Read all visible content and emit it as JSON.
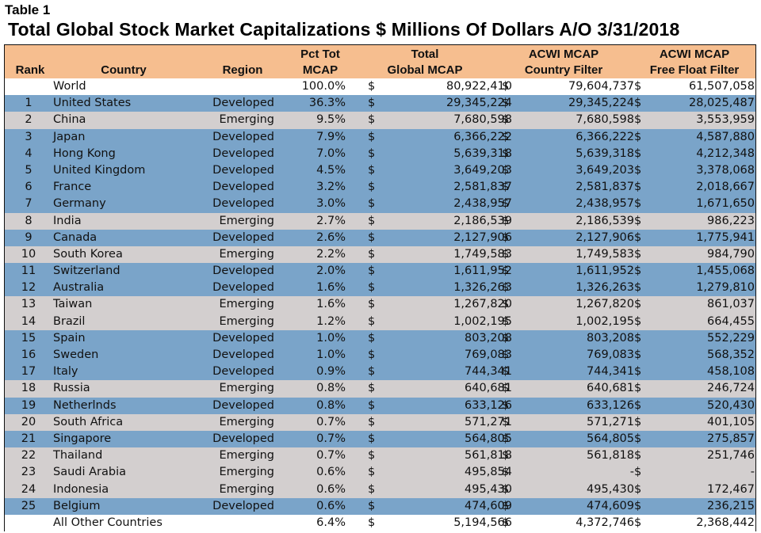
{
  "table_label": "Table 1",
  "title": "Total Global Stock Market Capitalizations $ Millions Of Dollars A/O 3/31/2018",
  "currency_symbol": "$",
  "header": {
    "rank": "Rank",
    "country": "Country",
    "region": "Region",
    "pct_line1": "Pct Tot",
    "pct_line2": "MCAP",
    "total_line1": "Total",
    "total_line2": "Global MCAP",
    "acwi_line1": "ACWI MCAP",
    "acwi_line2": "Country Filter",
    "ff_line1": "ACWI MCAP",
    "ff_line2": "Free Float Filter"
  },
  "colors": {
    "header": "#f6be8f",
    "developed_row": "#7aa4c9",
    "emerging_row": "#d3cfcf",
    "plain_row": "#ffffff"
  },
  "chart_data": {
    "type": "table",
    "title": "Total Global Stock Market Capitalizations $ Millions Of Dollars A/O 3/31/2018",
    "columns": [
      "Rank",
      "Country",
      "Region",
      "Pct Tot MCAP",
      "Total Global MCAP",
      "ACWI MCAP Country Filter",
      "ACWI MCAP Free Float Filter"
    ],
    "rows": [
      {
        "rank": "",
        "country": "World",
        "region": "",
        "pct": "100.0%",
        "total": "80,922,410",
        "acwi": "79,604,737",
        "ff": "61,507,058"
      },
      {
        "rank": "1",
        "country": "United States",
        "region": "Developed",
        "pct": "36.3%",
        "total": "29,345,224",
        "acwi": "29,345,224",
        "ff": "28,025,487"
      },
      {
        "rank": "2",
        "country": "China",
        "region": "Emerging",
        "pct": "9.5%",
        "total": "7,680,598",
        "acwi": "7,680,598",
        "ff": "3,553,959"
      },
      {
        "rank": "3",
        "country": "Japan",
        "region": "Developed",
        "pct": "7.9%",
        "total": "6,366,222",
        "acwi": "6,366,222",
        "ff": "4,587,880"
      },
      {
        "rank": "4",
        "country": "Hong Kong",
        "region": "Developed",
        "pct": "7.0%",
        "total": "5,639,318",
        "acwi": "5,639,318",
        "ff": "4,212,348"
      },
      {
        "rank": "5",
        "country": "United Kingdom",
        "region": "Developed",
        "pct": "4.5%",
        "total": "3,649,203",
        "acwi": "3,649,203",
        "ff": "3,378,068"
      },
      {
        "rank": "6",
        "country": "France",
        "region": "Developed",
        "pct": "3.2%",
        "total": "2,581,837",
        "acwi": "2,581,837",
        "ff": "2,018,667"
      },
      {
        "rank": "7",
        "country": "Germany",
        "region": "Developed",
        "pct": "3.0%",
        "total": "2,438,957",
        "acwi": "2,438,957",
        "ff": "1,671,650"
      },
      {
        "rank": "8",
        "country": "India",
        "region": "Emerging",
        "pct": "2.7%",
        "total": "2,186,539",
        "acwi": "2,186,539",
        "ff": "986,223"
      },
      {
        "rank": "9",
        "country": "Canada",
        "region": "Developed",
        "pct": "2.6%",
        "total": "2,127,906",
        "acwi": "2,127,906",
        "ff": "1,775,941"
      },
      {
        "rank": "10",
        "country": "South Korea",
        "region": "Emerging",
        "pct": "2.2%",
        "total": "1,749,583",
        "acwi": "1,749,583",
        "ff": "984,790"
      },
      {
        "rank": "11",
        "country": "Switzerland",
        "region": "Developed",
        "pct": "2.0%",
        "total": "1,611,952",
        "acwi": "1,611,952",
        "ff": "1,455,068"
      },
      {
        "rank": "12",
        "country": "Australia",
        "region": "Developed",
        "pct": "1.6%",
        "total": "1,326,263",
        "acwi": "1,326,263",
        "ff": "1,279,810"
      },
      {
        "rank": "13",
        "country": "Taiwan",
        "region": "Emerging",
        "pct": "1.6%",
        "total": "1,267,820",
        "acwi": "1,267,820",
        "ff": "861,037"
      },
      {
        "rank": "14",
        "country": "Brazil",
        "region": "Emerging",
        "pct": "1.2%",
        "total": "1,002,195",
        "acwi": "1,002,195",
        "ff": "664,455"
      },
      {
        "rank": "15",
        "country": "Spain",
        "region": "Developed",
        "pct": "1.0%",
        "total": "803,208",
        "acwi": "803,208",
        "ff": "552,229"
      },
      {
        "rank": "16",
        "country": "Sweden",
        "region": "Developed",
        "pct": "1.0%",
        "total": "769,083",
        "acwi": "769,083",
        "ff": "568,352"
      },
      {
        "rank": "17",
        "country": "Italy",
        "region": "Developed",
        "pct": "0.9%",
        "total": "744,341",
        "acwi": "744,341",
        "ff": "458,108"
      },
      {
        "rank": "18",
        "country": "Russia",
        "region": "Emerging",
        "pct": "0.8%",
        "total": "640,681",
        "acwi": "640,681",
        "ff": "246,724"
      },
      {
        "rank": "19",
        "country": "Netherlnds",
        "region": "Developed",
        "pct": "0.8%",
        "total": "633,126",
        "acwi": "633,126",
        "ff": "520,430"
      },
      {
        "rank": "20",
        "country": "South Africa",
        "region": "Emerging",
        "pct": "0.7%",
        "total": "571,271",
        "acwi": "571,271",
        "ff": "401,105"
      },
      {
        "rank": "21",
        "country": "Singapore",
        "region": "Developed",
        "pct": "0.7%",
        "total": "564,805",
        "acwi": "564,805",
        "ff": "275,857"
      },
      {
        "rank": "22",
        "country": "Thailand",
        "region": "Emerging",
        "pct": "0.7%",
        "total": "561,818",
        "acwi": "561,818",
        "ff": "251,746"
      },
      {
        "rank": "23",
        "country": "Saudi Arabia",
        "region": "Emerging",
        "pct": "0.6%",
        "total": "495,854",
        "acwi": "-",
        "ff": "-"
      },
      {
        "rank": "24",
        "country": "Indonesia",
        "region": "Emerging",
        "pct": "0.6%",
        "total": "495,430",
        "acwi": "495,430",
        "ff": "172,467"
      },
      {
        "rank": "25",
        "country": "Belgium",
        "region": "Developed",
        "pct": "0.6%",
        "total": "474,609",
        "acwi": "474,609",
        "ff": "236,215"
      },
      {
        "rank": "",
        "country": "All Other Countries",
        "region": "",
        "pct": "6.4%",
        "total": "5,194,566",
        "acwi": "4,372,746",
        "ff": "2,368,442"
      }
    ]
  }
}
